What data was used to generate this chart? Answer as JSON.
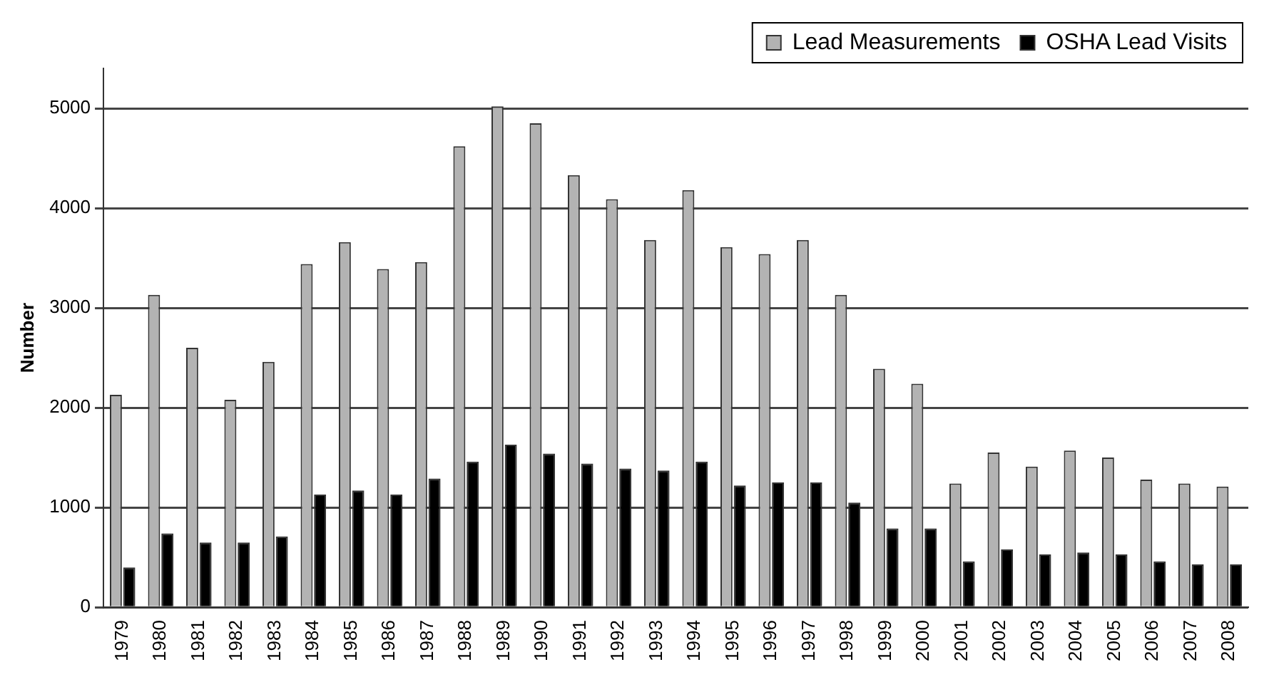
{
  "chart_data": {
    "type": "bar",
    "ylabel": "Number",
    "categories": [
      "1979",
      "1980",
      "1981",
      "1982",
      "1983",
      "1984",
      "1985",
      "1986",
      "1987",
      "1988",
      "1989",
      "1990",
      "1991",
      "1992",
      "1993",
      "1994",
      "1995",
      "1996",
      "1997",
      "1998",
      "1999",
      "2000",
      "2001",
      "2002",
      "2003",
      "2004",
      "2005",
      "2006",
      "2007",
      "2008"
    ],
    "series": [
      {
        "name": "Lead Measurements",
        "color": "#b3b3b3",
        "values": [
          2130,
          3130,
          2600,
          2080,
          2460,
          3440,
          3660,
          3390,
          3460,
          4620,
          5020,
          4850,
          4330,
          4090,
          3680,
          4180,
          3610,
          3540,
          3680,
          3130,
          2390,
          2240,
          1240,
          1550,
          1410,
          1570,
          1500,
          1280,
          1240,
          1210
        ]
      },
      {
        "name": "OSHA Lead Visits",
        "color": "#000000",
        "values": [
          400,
          740,
          650,
          650,
          710,
          1130,
          1170,
          1130,
          1290,
          1460,
          1630,
          1540,
          1440,
          1390,
          1370,
          1460,
          1220,
          1250,
          1250,
          1050,
          790,
          790,
          460,
          580,
          530,
          550,
          530,
          460,
          430,
          430
        ]
      }
    ],
    "ylim": [
      0,
      5400
    ],
    "yticks": [
      0,
      1000,
      2000,
      3000,
      4000,
      5000
    ],
    "grid": "y",
    "legend": "top right"
  }
}
